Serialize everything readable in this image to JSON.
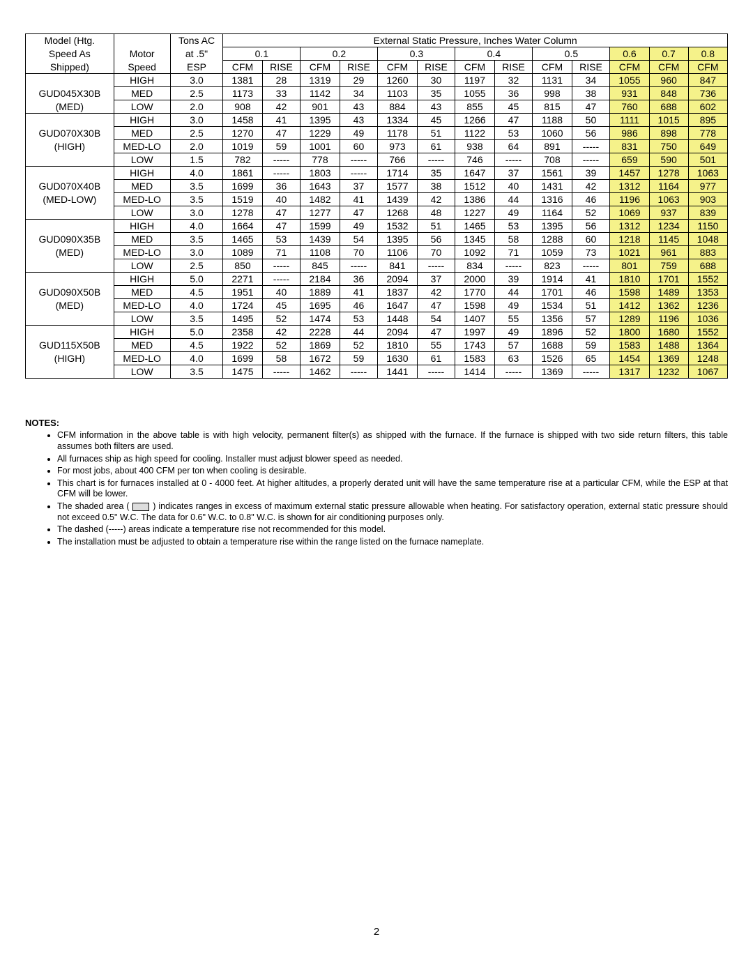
{
  "header": {
    "model_line1": "Model (Htg.",
    "model_line2": "Speed As",
    "model_line3": "Shipped)",
    "motor_line1": "Motor",
    "motor_line2": "Speed",
    "tons_line1": "Tons AC",
    "tons_line2": "at .5\"",
    "tons_line3": "ESP",
    "esp_title": "External Static Pressure, Inches Water Column",
    "esp_cols": [
      "0.1",
      "0.2",
      "0.3",
      "0.4",
      "0.5",
      "0.6",
      "0.7",
      "0.8"
    ],
    "cfm": "CFM",
    "rise": "RISE"
  },
  "models": [
    {
      "name_lines": [
        "GUD045X30B",
        "(MED)"
      ],
      "rows": [
        {
          "motor": "HIGH",
          "tons": "3.0",
          "v": [
            "1381",
            "28",
            "1319",
            "29",
            "1260",
            "30",
            "1197",
            "32",
            "1131",
            "34",
            "1055",
            "960",
            "847"
          ]
        },
        {
          "motor": "MED",
          "tons": "2.5",
          "v": [
            "1173",
            "33",
            "1142",
            "34",
            "1103",
            "35",
            "1055",
            "36",
            "998",
            "38",
            "931",
            "848",
            "736"
          ]
        },
        {
          "motor": "LOW",
          "tons": "2.0",
          "v": [
            "908",
            "42",
            "901",
            "43",
            "884",
            "43",
            "855",
            "45",
            "815",
            "47",
            "760",
            "688",
            "602"
          ]
        }
      ]
    },
    {
      "name_lines": [
        "GUD070X30B",
        "(HIGH)"
      ],
      "rows": [
        {
          "motor": "HIGH",
          "tons": "3.0",
          "v": [
            "1458",
            "41",
            "1395",
            "43",
            "1334",
            "45",
            "1266",
            "47",
            "1188",
            "50",
            "1111",
            "1015",
            "895"
          ]
        },
        {
          "motor": "MED",
          "tons": "2.5",
          "v": [
            "1270",
            "47",
            "1229",
            "49",
            "1178",
            "51",
            "1122",
            "53",
            "1060",
            "56",
            "986",
            "898",
            "778"
          ]
        },
        {
          "motor": "MED-LO",
          "tons": "2.0",
          "v": [
            "1019",
            "59",
            "1001",
            "60",
            "973",
            "61",
            "938",
            "64",
            "891",
            "-----",
            "831",
            "750",
            "649"
          ]
        },
        {
          "motor": "LOW",
          "tons": "1.5",
          "v": [
            "782",
            "-----",
            "778",
            "-----",
            "766",
            "-----",
            "746",
            "-----",
            "708",
            "-----",
            "659",
            "590",
            "501"
          ]
        }
      ]
    },
    {
      "name_lines": [
        "GUD070X40B",
        "(MED-LOW)"
      ],
      "rows": [
        {
          "motor": "HIGH",
          "tons": "4.0",
          "v": [
            "1861",
            "-----",
            "1803",
            "-----",
            "1714",
            "35",
            "1647",
            "37",
            "1561",
            "39",
            "1457",
            "1278",
            "1063"
          ]
        },
        {
          "motor": "MED",
          "tons": "3.5",
          "v": [
            "1699",
            "36",
            "1643",
            "37",
            "1577",
            "38",
            "1512",
            "40",
            "1431",
            "42",
            "1312",
            "1164",
            "977"
          ]
        },
        {
          "motor": "MED-LO",
          "tons": "3.5",
          "v": [
            "1519",
            "40",
            "1482",
            "41",
            "1439",
            "42",
            "1386",
            "44",
            "1316",
            "46",
            "1196",
            "1063",
            "903"
          ]
        },
        {
          "motor": "LOW",
          "tons": "3.0",
          "v": [
            "1278",
            "47",
            "1277",
            "47",
            "1268",
            "48",
            "1227",
            "49",
            "1164",
            "52",
            "1069",
            "937",
            "839"
          ]
        }
      ]
    },
    {
      "name_lines": [
        "GUD090X35B",
        "(MED)"
      ],
      "rows": [
        {
          "motor": "HIGH",
          "tons": "4.0",
          "v": [
            "1664",
            "47",
            "1599",
            "49",
            "1532",
            "51",
            "1465",
            "53",
            "1395",
            "56",
            "1312",
            "1234",
            "1150"
          ]
        },
        {
          "motor": "MED",
          "tons": "3.5",
          "v": [
            "1465",
            "53",
            "1439",
            "54",
            "1395",
            "56",
            "1345",
            "58",
            "1288",
            "60",
            "1218",
            "1145",
            "1048"
          ]
        },
        {
          "motor": "MED-LO",
          "tons": "3.0",
          "v": [
            "1089",
            "71",
            "1108",
            "70",
            "1106",
            "70",
            "1092",
            "71",
            "1059",
            "73",
            "1021",
            "961",
            "883"
          ]
        },
        {
          "motor": "LOW",
          "tons": "2.5",
          "v": [
            "850",
            "-----",
            "845",
            "-----",
            "841",
            "-----",
            "834",
            "-----",
            "823",
            "-----",
            "801",
            "759",
            "688"
          ]
        }
      ]
    },
    {
      "name_lines": [
        "GUD090X50B",
        "(MED)"
      ],
      "rows": [
        {
          "motor": "HIGH",
          "tons": "5.0",
          "v": [
            "2271",
            "-----",
            "2184",
            "36",
            "2094",
            "37",
            "2000",
            "39",
            "1914",
            "41",
            "1810",
            "1701",
            "1552"
          ]
        },
        {
          "motor": "MED",
          "tons": "4.5",
          "v": [
            "1951",
            "40",
            "1889",
            "41",
            "1837",
            "42",
            "1770",
            "44",
            "1701",
            "46",
            "1598",
            "1489",
            "1353"
          ]
        },
        {
          "motor": "MED-LO",
          "tons": "4.0",
          "v": [
            "1724",
            "45",
            "1695",
            "46",
            "1647",
            "47",
            "1598",
            "49",
            "1534",
            "51",
            "1412",
            "1362",
            "1236"
          ]
        },
        {
          "motor": "LOW",
          "tons": "3.5",
          "v": [
            "1495",
            "52",
            "1474",
            "53",
            "1448",
            "54",
            "1407",
            "55",
            "1356",
            "57",
            "1289",
            "1196",
            "1036"
          ]
        }
      ]
    },
    {
      "name_lines": [
        "GUD115X50B",
        "(HIGH)"
      ],
      "rows": [
        {
          "motor": "HIGH",
          "tons": "5.0",
          "v": [
            "2358",
            "42",
            "2228",
            "44",
            "2094",
            "47",
            "1997",
            "49",
            "1896",
            "52",
            "1800",
            "1680",
            "1552"
          ]
        },
        {
          "motor": "MED",
          "tons": "4.5",
          "v": [
            "1922",
            "52",
            "1869",
            "52",
            "1810",
            "55",
            "1743",
            "57",
            "1688",
            "59",
            "1583",
            "1488",
            "1364"
          ]
        },
        {
          "motor": "MED-LO",
          "tons": "4.0",
          "v": [
            "1699",
            "58",
            "1672",
            "59",
            "1630",
            "61",
            "1583",
            "63",
            "1526",
            "65",
            "1454",
            "1369",
            "1248"
          ]
        },
        {
          "motor": "LOW",
          "tons": "3.5",
          "v": [
            "1475",
            "-----",
            "1462",
            "-----",
            "1441",
            "-----",
            "1414",
            "-----",
            "1369",
            "-----",
            "1317",
            "1232",
            "1067"
          ]
        }
      ]
    }
  ],
  "shaded_value_cols": [
    10,
    11,
    12
  ],
  "notes_heading": "NOTES:",
  "notes": [
    "CFM information in the above table is with high velocity, permanent filter(s) as shipped with the furnace. If the furnace is shipped with two side return filters, this table assumes both filters are used.",
    "All furnaces ship as high speed  for  cooling. Installer must adjust  blower speed as needed.",
    "For most jobs, about 400 CFM per ton when cooling is desirable.",
    "This chart is for furnaces installed at 0 - 4000 feet. At higher altitudes, a properly derated unit will have the same temperature rise at a particular CFM, while the ESP at that CFM will be lower.",
    "The  shaded area  ( [SHADEBOX] ) indicates ranges in excess of maximum external static pressure allowable when heating.  For satisfactory operation, external static pressure should not exceed 0.5\" W.C. The data for 0.6\" W.C. to 0.8\" W.C. is shown for air conditioning purposes only.",
    "The  dashed (-----) areas indicate a temperature rise not recommended for this model.",
    "The installation must be adjusted to obtain a temperature rise within the range listed on the furnace nameplate."
  ],
  "page_number": "2",
  "colors": {
    "shaded_bg": "#f5f28a",
    "border": "#000000",
    "text": "#000000"
  }
}
